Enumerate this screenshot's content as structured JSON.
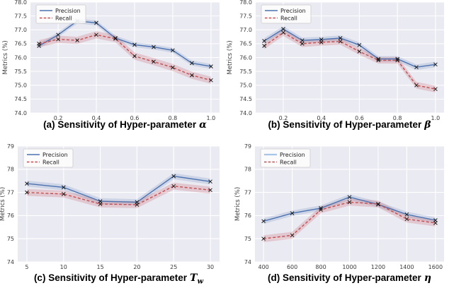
{
  "figure": {
    "background": "#ffffff",
    "plot_bg": "#eaeaf2",
    "grid_color": "#ffffff",
    "tick_color": "#3b3b3b",
    "marker_color": "#1a1a1a",
    "legend_bg": "#fdfdfd",
    "legend_border": "#cccccc"
  },
  "chart_data": [
    {
      "type": "line",
      "caption": {
        "prefix": "(a) Sensitivity of Hyper-parameter",
        "symbol": "α",
        "subscript": ""
      },
      "ylabel": "Metrics (%)",
      "x": [
        0.1,
        0.2,
        0.3,
        0.4,
        0.5,
        0.6,
        0.7,
        0.8,
        0.9,
        1.0
      ],
      "xtick_values": [
        0.2,
        0.4,
        0.6,
        0.8,
        1.0
      ],
      "xtick_labels": [
        "0.2",
        "0.4",
        "0.6",
        "0.8",
        "1.0"
      ],
      "xlim": [
        0.055,
        1.045
      ],
      "ylim": [
        74.0,
        78.0
      ],
      "ytick_values": [
        74.0,
        74.5,
        75.0,
        75.5,
        76.0,
        76.5,
        77.0,
        77.5,
        78.0
      ],
      "ytick_labels": [
        "74.0",
        "74.5",
        "75.0",
        "75.5",
        "76.0",
        "76.5",
        "77.0",
        "77.5",
        "78.0"
      ],
      "grid": true,
      "legend_position": "upper-left",
      "series": [
        {
          "name": "Precision",
          "color": "#4c72b0",
          "dash": false,
          "band": 0.09,
          "values": [
            76.42,
            76.82,
            77.32,
            77.25,
            76.7,
            76.46,
            76.38,
            76.26,
            75.8,
            75.68
          ]
        },
        {
          "name": "Recall",
          "color": "#c44e52",
          "dash": true,
          "band": 0.13,
          "values": [
            76.5,
            76.66,
            76.62,
            76.82,
            76.68,
            76.05,
            75.85,
            75.64,
            75.36,
            75.18
          ]
        }
      ]
    },
    {
      "type": "line",
      "caption": {
        "prefix": "(b) Sensitivity of Hyper-parameter",
        "symbol": "β",
        "subscript": ""
      },
      "ylabel": "Metrics (%)",
      "x": [
        0.1,
        0.2,
        0.3,
        0.4,
        0.5,
        0.6,
        0.7,
        0.8,
        0.9,
        1.0
      ],
      "xtick_values": [
        0.2,
        0.4,
        0.6,
        0.8,
        1.0
      ],
      "xtick_labels": [
        "0.2",
        "0.4",
        "0.6",
        "0.8",
        "1.0"
      ],
      "xlim": [
        0.055,
        1.045
      ],
      "ylim": [
        74.0,
        78.0
      ],
      "ytick_values": [
        74.0,
        74.5,
        75.0,
        75.5,
        76.0,
        76.5,
        77.0,
        77.5,
        78.0
      ],
      "ytick_labels": [
        "74.0",
        "74.5",
        "75.0",
        "75.5",
        "76.0",
        "76.5",
        "77.0",
        "77.5",
        "78.0"
      ],
      "grid": true,
      "legend_position": "upper-left",
      "series": [
        {
          "name": "Precision",
          "color": "#4c72b0",
          "dash": false,
          "band": 0.1,
          "values": [
            76.6,
            77.03,
            76.62,
            76.65,
            76.7,
            76.45,
            75.95,
            75.95,
            75.65,
            75.75
          ]
        },
        {
          "name": "Recall",
          "color": "#c44e52",
          "dash": true,
          "band": 0.12,
          "values": [
            76.42,
            76.9,
            76.5,
            76.55,
            76.58,
            76.22,
            75.9,
            75.9,
            75.0,
            74.86
          ]
        }
      ]
    },
    {
      "type": "line",
      "caption": {
        "prefix": "(c) Sensitivity of Hyper-parameter",
        "symbol": "T",
        "subscript": "w"
      },
      "ylabel": "Metrics (%)",
      "x": [
        5,
        10,
        15,
        20,
        25,
        30
      ],
      "xtick_values": [
        5,
        10,
        15,
        20,
        25,
        30
      ],
      "xtick_labels": [
        "5",
        "10",
        "15",
        "20",
        "25",
        "30"
      ],
      "xlim": [
        3.75,
        31.25
      ],
      "ylim": [
        74,
        79
      ],
      "ytick_values": [
        74,
        75,
        76,
        77,
        78,
        79
      ],
      "ytick_labels": [
        "74",
        "75",
        "76",
        "77",
        "78",
        "79"
      ],
      "grid": true,
      "legend_position": "upper-left",
      "series": [
        {
          "name": "Precision",
          "color": "#4c72b0",
          "dash": false,
          "band": 0.13,
          "values": [
            77.38,
            77.22,
            76.62,
            76.58,
            77.7,
            77.47
          ]
        },
        {
          "name": "Recall",
          "color": "#c44e52",
          "dash": true,
          "band": 0.15,
          "values": [
            77.0,
            76.93,
            76.5,
            76.47,
            77.27,
            77.1
          ]
        }
      ]
    },
    {
      "type": "line",
      "caption": {
        "prefix": "(d) Sensitivity of Hyper-parameter",
        "symbol": "η",
        "subscript": ""
      },
      "ylabel": "Metrics (%)",
      "x": [
        400,
        600,
        800,
        1000,
        1200,
        1400,
        1600
      ],
      "xtick_values": [
        400,
        600,
        800,
        1000,
        1200,
        1400,
        1600
      ],
      "xtick_labels": [
        "400",
        "600",
        "800",
        "1000",
        "1200",
        "1400",
        "1600"
      ],
      "xlim": [
        340,
        1660
      ],
      "ylim": [
        74,
        79
      ],
      "ytick_values": [
        74,
        75,
        76,
        77,
        78,
        79
      ],
      "ytick_labels": [
        "74",
        "75",
        "76",
        "77",
        "78",
        "79"
      ],
      "grid": true,
      "legend_position": "upper-left",
      "series": [
        {
          "name": "Precision",
          "color": "#4c72b0",
          "legend_color": "#a9c6e8",
          "dash": false,
          "band": 0.12,
          "values": [
            75.76,
            76.1,
            76.32,
            76.8,
            76.48,
            76.05,
            75.8
          ]
        },
        {
          "name": "Recall",
          "color": "#c44e52",
          "dash": true,
          "band": 0.15,
          "values": [
            75.0,
            75.15,
            76.25,
            76.58,
            76.5,
            75.85,
            75.68
          ]
        }
      ]
    }
  ]
}
